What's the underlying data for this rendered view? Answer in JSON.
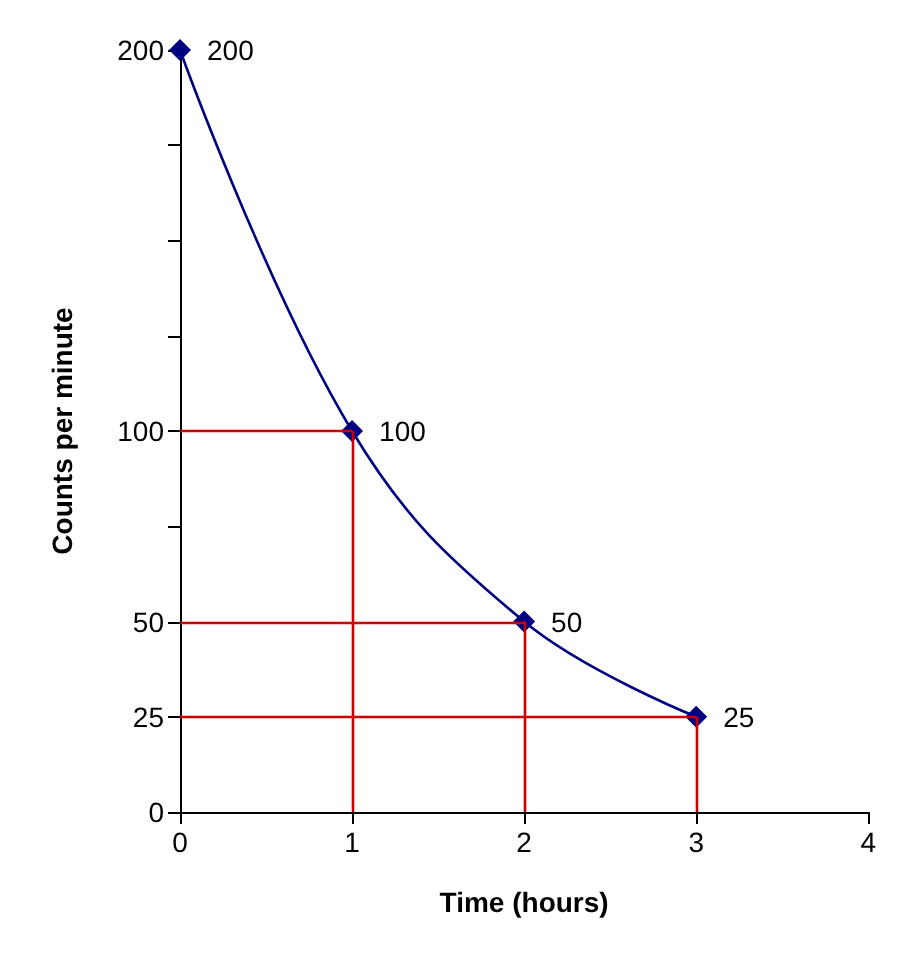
{
  "chart_data": {
    "type": "line",
    "xlabel": "Time (hours)",
    "ylabel": "Counts per minute",
    "x": [
      0,
      1,
      2,
      3
    ],
    "series": [
      {
        "color": "#000080",
        "values": [
          200,
          100,
          50,
          25
        ]
      }
    ],
    "xlim": [
      0,
      4
    ],
    "xticks": [
      0,
      1,
      2,
      3,
      4
    ],
    "ylim": [
      0,
      200
    ],
    "yticks": [
      0,
      25,
      50,
      {
        "value": 75,
        "label": null
      },
      100,
      {
        "value": 125,
        "label": null
      },
      {
        "value": 150,
        "label": null
      },
      {
        "value": 175,
        "label": null
      },
      200
    ],
    "ref_lines": [
      {
        "axis": "y",
        "value": 100,
        "color": "#cc0000"
      },
      {
        "axis": "y",
        "value": 50,
        "color": "#cc0000"
      },
      {
        "axis": "y",
        "value": 25,
        "color": "#cc0000"
      },
      {
        "axis": "x",
        "value": 1,
        "color": "#cc0000"
      },
      {
        "axis": "x",
        "value": 2,
        "color": "#cc0000"
      },
      {
        "axis": "x",
        "value": 3,
        "color": "#cc0000"
      }
    ],
    "data_labels": true,
    "marker": "diamond",
    "line_style": "solid",
    "grid": false
  }
}
